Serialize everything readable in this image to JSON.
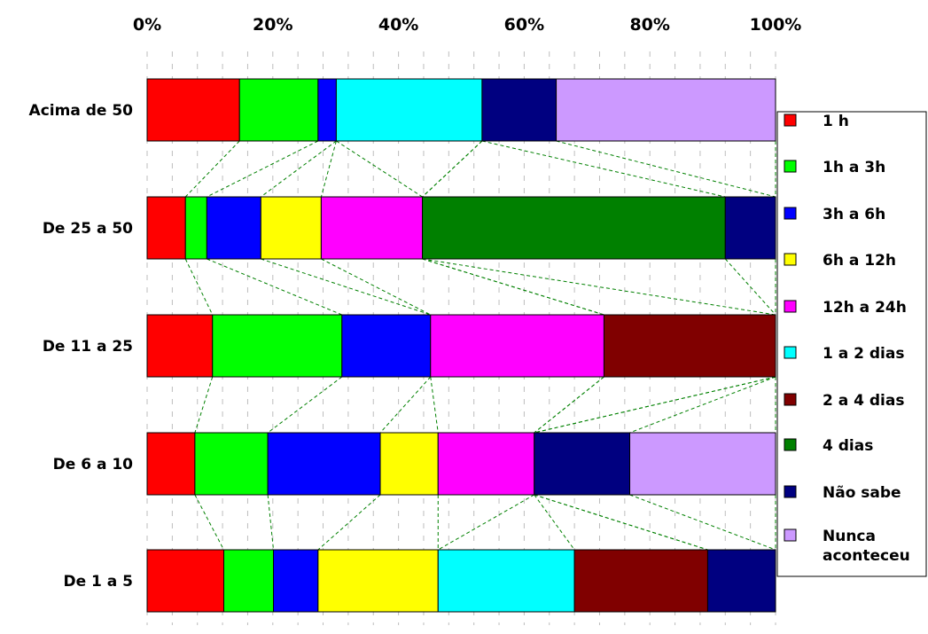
{
  "chart_data": {
    "type": "bar",
    "orientation": "horizontal",
    "stacking": "percent",
    "x_ticks": [
      "0%",
      "20%",
      "40%",
      "60%",
      "80%",
      "100%"
    ],
    "xlim": [
      0,
      100
    ],
    "grid": true,
    "series_lines": true,
    "legend_position": "right",
    "categories": [
      "Acima de 50",
      "De 25 a 50",
      "De 11 a 25",
      "De 6 a 10",
      "De 1 a 5"
    ],
    "series": [
      {
        "name": "1 h",
        "color": "#FF0000",
        "values": [
          14.7,
          6.1,
          10.4,
          7.6,
          12.2
        ]
      },
      {
        "name": "1h a 3h",
        "color": "#00FF00",
        "values": [
          12.5,
          3.4,
          20.6,
          11.6,
          7.9
        ]
      },
      {
        "name": "3h a 6h",
        "color": "#0000FF",
        "values": [
          2.9,
          8.6,
          14.1,
          17.9,
          7.1
        ]
      },
      {
        "name": "6h a 12h",
        "color": "#FFFF00",
        "values": [
          0,
          9.6,
          0,
          9.2,
          19.1
        ]
      },
      {
        "name": "12h a 24h",
        "color": "#FF00FF",
        "values": [
          0,
          16.1,
          27.6,
          15.3,
          0
        ]
      },
      {
        "name": "1 a 2 dias",
        "color": "#00FFFF",
        "values": [
          23.2,
          0,
          0,
          0,
          21.7
        ]
      },
      {
        "name": "2 a 4 dias",
        "color": "#800000",
        "values": [
          0,
          0,
          27.3,
          0,
          21.2
        ]
      },
      {
        "name": "4 dias",
        "color": "#008000",
        "values": [
          0,
          48.2,
          0,
          0,
          0
        ]
      },
      {
        "name": "Não sabe",
        "color": "#000080",
        "values": [
          11.8,
          8.0,
          0,
          15.2,
          10.8
        ]
      },
      {
        "name": "Nunca aconteceu",
        "color": "#CC99FF",
        "values": [
          34.9,
          0,
          0,
          23.2,
          0
        ]
      }
    ]
  }
}
